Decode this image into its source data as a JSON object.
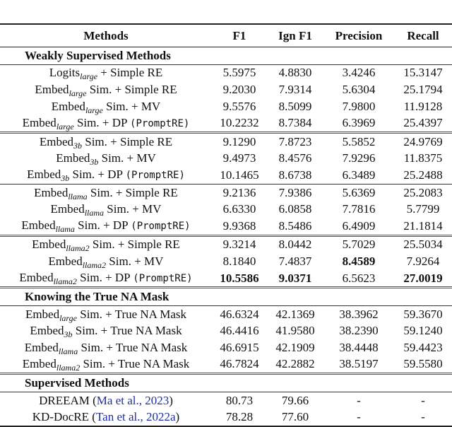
{
  "headers": [
    "Methods",
    "F1",
    "Ign F1",
    "Precision",
    "Recall"
  ],
  "sections": [
    {
      "title": "Weakly Supervised Methods",
      "groups": [
        [
          {
            "pre": "Logits",
            "sub": "large",
            "post": " + Simple RE",
            "code": "",
            "cite": "",
            "close": "",
            "values": [
              "5.5975",
              "4.8830",
              "3.4246",
              "15.3147"
            ],
            "bold": [
              false,
              false,
              false,
              false
            ]
          },
          {
            "pre": "Embed",
            "sub": "large",
            "post": " Sim. + Simple RE",
            "code": "",
            "cite": "",
            "close": "",
            "values": [
              "9.2030",
              "7.9314",
              "5.6304",
              "25.1794"
            ],
            "bold": [
              false,
              false,
              false,
              false
            ]
          },
          {
            "pre": "Embed",
            "sub": "large",
            "post": " Sim. + MV",
            "code": "",
            "cite": "",
            "close": "",
            "values": [
              "9.5576",
              "8.5099",
              "7.9800",
              "11.9128"
            ],
            "bold": [
              false,
              false,
              false,
              false
            ]
          },
          {
            "pre": "Embed",
            "sub": "large",
            "post": " Sim. + DP ",
            "code": "(PromptRE)",
            "cite": "",
            "close": "",
            "values": [
              "10.2232",
              "8.7384",
              "6.3969",
              "25.4397"
            ],
            "bold": [
              false,
              false,
              false,
              false
            ]
          }
        ],
        [
          {
            "pre": "Embed",
            "sub": "3b",
            "post": " Sim. + Simple RE",
            "code": "",
            "cite": "",
            "close": "",
            "values": [
              "9.1290",
              "7.8723",
              "5.5852",
              "24.9769"
            ],
            "bold": [
              false,
              false,
              false,
              false
            ]
          },
          {
            "pre": "Embed",
            "sub": "3b",
            "post": " Sim. + MV",
            "code": "",
            "cite": "",
            "close": "",
            "values": [
              "9.4973",
              "8.4576",
              "7.9296",
              "11.8375"
            ],
            "bold": [
              false,
              false,
              false,
              false
            ]
          },
          {
            "pre": "Embed",
            "sub": "3b",
            "post": " Sim. + DP ",
            "code": "(PromptRE)",
            "cite": "",
            "close": "",
            "values": [
              "10.1465",
              "8.6738",
              "6.3489",
              "25.2488"
            ],
            "bold": [
              false,
              false,
              false,
              false
            ]
          }
        ],
        [
          {
            "pre": "Embed",
            "sub": "llama",
            "post": " Sim. + Simple RE",
            "code": "",
            "cite": "",
            "close": "",
            "values": [
              "9.2136",
              "7.9386",
              "5.6369",
              "25.2083"
            ],
            "bold": [
              false,
              false,
              false,
              false
            ]
          },
          {
            "pre": "Embed",
            "sub": "llama",
            "post": " Sim. + MV",
            "code": "",
            "cite": "",
            "close": "",
            "values": [
              "6.6330",
              "6.0858",
              "7.7816",
              "5.7799"
            ],
            "bold": [
              false,
              false,
              false,
              false
            ]
          },
          {
            "pre": "Embed",
            "sub": "llama",
            "post": " Sim. + DP ",
            "code": "(PromptRE)",
            "cite": "",
            "close": "",
            "values": [
              "9.9368",
              "8.5486",
              "6.4909",
              "21.1814"
            ],
            "bold": [
              false,
              false,
              false,
              false
            ]
          }
        ],
        [
          {
            "pre": "Embed",
            "sub": "llama2",
            "post": " Sim. + Simple RE",
            "code": "",
            "cite": "",
            "close": "",
            "values": [
              "9.3214",
              "8.0442",
              "5.7029",
              "25.5034"
            ],
            "bold": [
              false,
              false,
              false,
              false
            ]
          },
          {
            "pre": "Embed",
            "sub": "llama2",
            "post": " Sim. + MV",
            "code": "",
            "cite": "",
            "close": "",
            "values": [
              "8.1840",
              "7.4837",
              "8.4589",
              "7.9264"
            ],
            "bold": [
              false,
              false,
              true,
              false
            ]
          },
          {
            "pre": "Embed",
            "sub": "llama2",
            "post": " Sim. + DP ",
            "code": "(PromptRE)",
            "cite": "",
            "close": "",
            "values": [
              "10.5586",
              "9.0371",
              "6.5623",
              "27.0019"
            ],
            "bold": [
              true,
              true,
              false,
              true
            ]
          }
        ]
      ]
    },
    {
      "title": "Knowing the True NA Mask",
      "groups": [
        [
          {
            "pre": "Embed",
            "sub": "large",
            "post": " Sim. + True NA Mask",
            "code": "",
            "cite": "",
            "close": "",
            "values": [
              "46.6324",
              "42.1369",
              "38.3962",
              "59.3670"
            ],
            "bold": [
              false,
              false,
              false,
              false
            ]
          },
          {
            "pre": "Embed",
            "sub": "3b",
            "post": " Sim. + True NA Mask",
            "code": "",
            "cite": "",
            "close": "",
            "values": [
              "46.4416",
              "41.9580",
              "38.2390",
              "59.1240"
            ],
            "bold": [
              false,
              false,
              false,
              false
            ]
          },
          {
            "pre": "Embed",
            "sub": "llama",
            "post": " Sim. + True NA Mask",
            "code": "",
            "cite": "",
            "close": "",
            "values": [
              "46.6915",
              "42.1909",
              "38.4448",
              "59.4423"
            ],
            "bold": [
              false,
              false,
              false,
              false
            ]
          },
          {
            "pre": "Embed",
            "sub": "llama2",
            "post": " Sim. + True NA Mask",
            "code": "",
            "cite": "",
            "close": "",
            "values": [
              "46.7824",
              "42.2882",
              "38.5197",
              "59.5580"
            ],
            "bold": [
              false,
              false,
              false,
              false
            ]
          }
        ]
      ]
    },
    {
      "title": "Supervised Methods",
      "groups": [
        [
          {
            "pre": "DREEAM (",
            "sub": "",
            "post": "",
            "code": "",
            "cite": "Ma et al., 2023",
            "close": ")",
            "values": [
              "80.73",
              "79.66",
              "-",
              "-"
            ],
            "bold": [
              false,
              false,
              false,
              false
            ]
          },
          {
            "pre": "KD-DocRE (",
            "sub": "",
            "post": "",
            "code": "",
            "cite": "Tan et al., 2022a",
            "close": ")",
            "values": [
              "78.28",
              "77.60",
              "-",
              "-"
            ],
            "bold": [
              false,
              false,
              false,
              false
            ]
          }
        ]
      ]
    }
  ],
  "colors": {
    "citation": "#1f2fa0"
  }
}
